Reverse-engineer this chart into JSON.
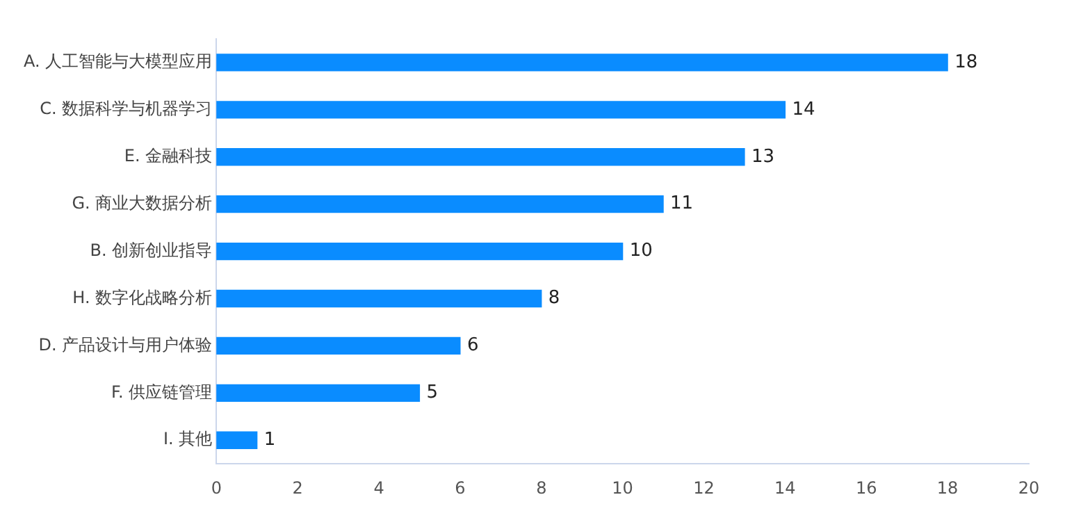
{
  "chart_data": {
    "type": "bar",
    "orientation": "horizontal",
    "categories": [
      "A. 人工智能与大模型应用",
      "C. 数据科学与机器学习",
      "E. 金融科技",
      "G. 商业大数据分析",
      "B. 创新创业指导",
      "H. 数字化战略分析",
      "D. 产品设计与用户体验",
      "F. 供应链管理",
      "I. 其他"
    ],
    "values": [
      18,
      14,
      13,
      11,
      10,
      8,
      6,
      5,
      1
    ],
    "color": "#0a8cff",
    "xlim": [
      0,
      20
    ],
    "xticks": [
      0,
      2,
      4,
      6,
      8,
      10,
      12,
      14,
      16,
      18,
      20
    ],
    "grid": false,
    "legend": false,
    "data_labels": true
  }
}
